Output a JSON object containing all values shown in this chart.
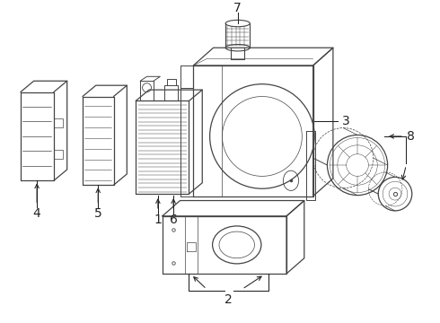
{
  "bg_color": "#ffffff",
  "line_color": "#444444",
  "lw": 0.9,
  "label_fontsize": 10,
  "figsize": [
    4.9,
    3.6
  ],
  "dpi": 100,
  "xlim": [
    0,
    9.8
  ],
  "ylim": [
    0,
    7.2
  ]
}
